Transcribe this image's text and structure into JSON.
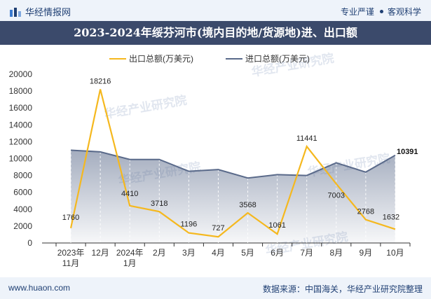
{
  "header": {
    "brand": "华经情报网",
    "tag1": "专业严谨",
    "tag2": "客观科学"
  },
  "title": "2023-2024年绥芬河市(境内目的地/货源地)进、出口额",
  "footer": {
    "website": "www.huaon.com",
    "source": "数据来源：中国海关，华经产业研究院整理"
  },
  "watermark": "华经产业研究院",
  "colors": {
    "export": "#f5b81e",
    "import": "#5a6a8a",
    "header_bg": "#3b4a6b"
  },
  "chart_data": {
    "type": "line",
    "categories": [
      "2023年\n11月",
      "12月",
      "2024年\n1月",
      "2月",
      "3月",
      "4月",
      "5月",
      "6月",
      "7月",
      "8月",
      "9月",
      "10月"
    ],
    "series": [
      {
        "name": "出口总额(万美元)",
        "values": [
          1760,
          18216,
          4410,
          3718,
          1196,
          727,
          3568,
          1061,
          11441,
          7003,
          2768,
          1632
        ]
      },
      {
        "name": "进口总额(万美元)",
        "values": [
          11000,
          10800,
          9900,
          9900,
          8500,
          8700,
          7700,
          8100,
          8000,
          9500,
          8400,
          10391
        ]
      }
    ],
    "data_labels": {
      "export": [
        "1760",
        "18216",
        "4410",
        "3718",
        "1196",
        "727",
        "3568",
        "1061",
        "11441",
        "7003",
        "2768",
        "1632"
      ],
      "import_last": "10391"
    },
    "ylim": [
      0,
      20000
    ],
    "yticks": [
      0,
      2000,
      4000,
      6000,
      8000,
      10000,
      12000,
      14000,
      16000,
      18000,
      20000
    ],
    "xlabel": "",
    "ylabel": "",
    "legend_position": "top",
    "grid": false
  }
}
